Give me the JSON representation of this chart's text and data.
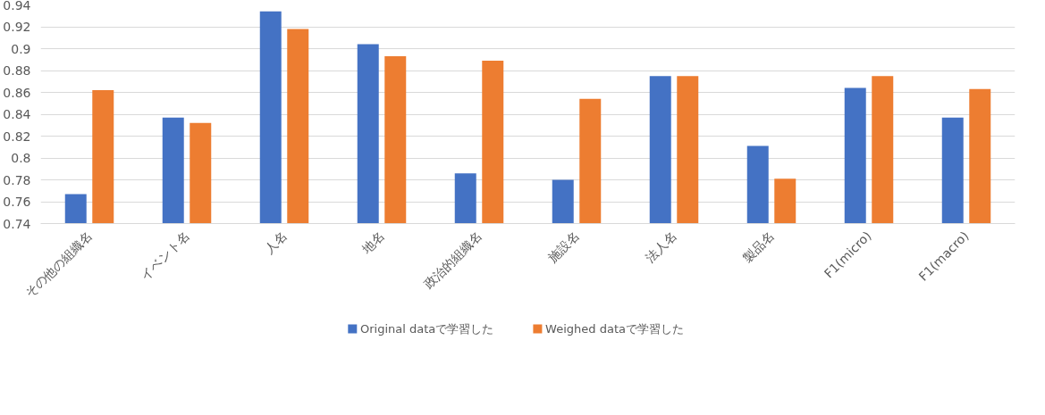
{
  "chart_data": {
    "type": "bar",
    "categories": [
      "その他の組織名",
      "イベント名",
      "人名",
      "地名",
      "政治的組織名",
      "施設名",
      "法人名",
      "製品名",
      "F1(micro)",
      "F1(macro)"
    ],
    "series": [
      {
        "name": "Original dataで学習した",
        "color": "#4472c4",
        "values": [
          0.767,
          0.837,
          0.934,
          0.904,
          0.786,
          0.78,
          0.875,
          0.811,
          0.864,
          0.837
        ]
      },
      {
        "name": "Weighed dataで学習した",
        "color": "#ed7d31",
        "values": [
          0.862,
          0.832,
          0.918,
          0.893,
          0.889,
          0.854,
          0.875,
          0.781,
          0.875,
          0.863
        ]
      }
    ],
    "ylim": [
      0.74,
      0.94
    ],
    "yticks": [
      0.74,
      0.76,
      0.78,
      0.8,
      0.82,
      0.84,
      0.86,
      0.88,
      0.9,
      0.92,
      0.94
    ],
    "grid": "y",
    "legend": "bottom"
  }
}
